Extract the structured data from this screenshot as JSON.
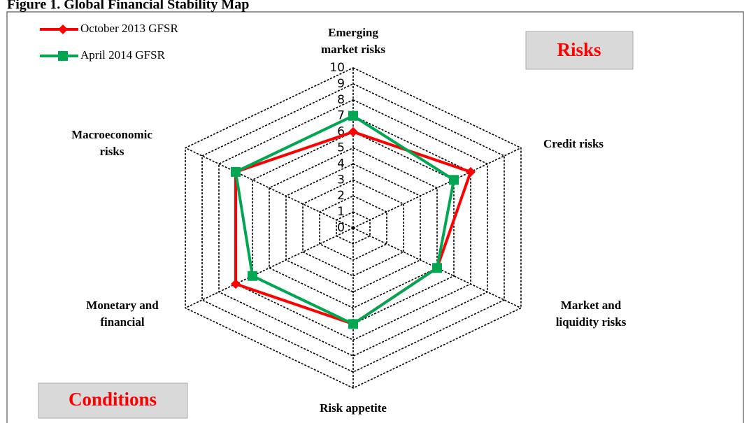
{
  "chart_data": {
    "type": "radar",
    "title": "Figure 1. Global Financial Stability Map",
    "categories": [
      [
        "Emerging",
        "market risks"
      ],
      [
        "Credit risks"
      ],
      [
        "Market and",
        "liquidity risks"
      ],
      [
        "Risk appetite"
      ],
      [
        "Monetary and",
        "financial"
      ],
      [
        "Macroeconomic",
        "risks"
      ]
    ],
    "series": [
      {
        "name": "October 2013 GFSR",
        "color": "#ff0000",
        "marker": "diamond",
        "values": [
          6,
          7,
          5,
          6,
          7,
          7
        ]
      },
      {
        "name": "April 2014 GFSR",
        "color": "#00a651",
        "marker": "square",
        "values": [
          7,
          6,
          5,
          6,
          6,
          7
        ]
      }
    ],
    "rlim": [
      0,
      10
    ],
    "rticks": [
      0,
      1,
      2,
      3,
      4,
      5,
      6,
      7,
      8,
      9,
      10
    ],
    "annotations": [
      "Risks",
      "Conditions"
    ],
    "legend": "top-left"
  }
}
